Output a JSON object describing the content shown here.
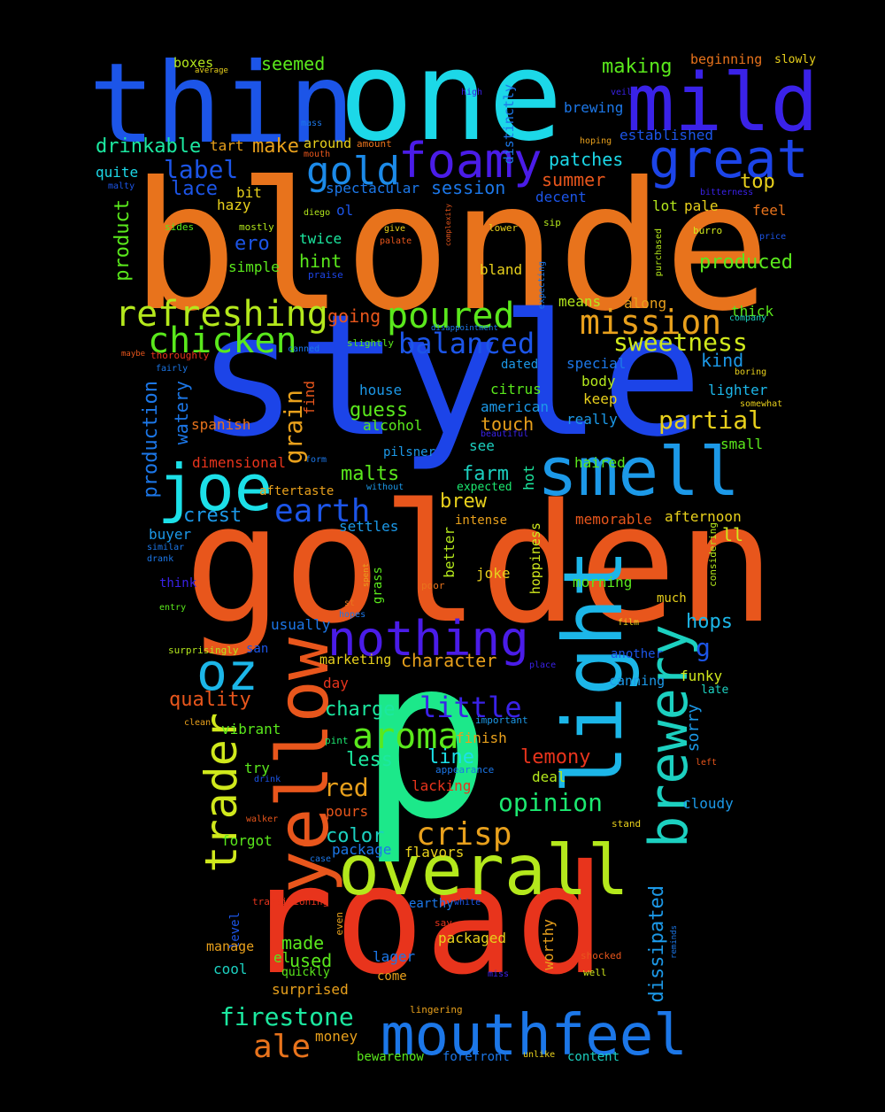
{
  "cloud": {
    "words": [
      {
        "text": "blonde",
        "color": "#e8731c"
      },
      {
        "text": "style",
        "color": "#1c44e8"
      },
      {
        "text": "golden",
        "color": "#e8561c"
      },
      {
        "text": "road",
        "color": "#e8341c"
      },
      {
        "text": "one",
        "color": "#1cd8e8"
      },
      {
        "text": "thin",
        "color": "#1c55e8"
      },
      {
        "text": "mild",
        "color": "#3a22e8"
      },
      {
        "text": "great",
        "color": "#1c44e8"
      },
      {
        "text": "foamy",
        "color": "#4a1ce8"
      },
      {
        "text": "gold",
        "color": "#1c8ae8"
      },
      {
        "text": "light",
        "color": "#1cb6e8"
      },
      {
        "text": "smell",
        "color": "#1c99e8"
      },
      {
        "text": "joe",
        "color": "#1ce0e8"
      },
      {
        "text": "yellow",
        "color": "#e8561c"
      },
      {
        "text": "overall",
        "color": "#b4e81c"
      },
      {
        "text": "brewery",
        "color": "#1cd0c0"
      },
      {
        "text": "mouthfeel",
        "color": "#1c77e8"
      },
      {
        "text": "nothing",
        "color": "#4a1ce8"
      },
      {
        "text": "trader",
        "color": "#d0e81c"
      },
      {
        "text": "oz",
        "color": "#1cb6e8"
      },
      {
        "text": "p",
        "color": "#1ce88a"
      },
      {
        "text": "refreshing",
        "color": "#b4e81c"
      },
      {
        "text": "chicken",
        "color": "#5ae81c"
      },
      {
        "text": "poured",
        "color": "#5ae81c"
      },
      {
        "text": "mission",
        "color": "#e8a01c"
      },
      {
        "text": "balanced",
        "color": "#1c55e8"
      },
      {
        "text": "sweetness",
        "color": "#d0e81c"
      },
      {
        "text": "aroma",
        "color": "#5ae81c"
      },
      {
        "text": "crisp",
        "color": "#e8a01c"
      },
      {
        "text": "earth",
        "color": "#1c55e8"
      },
      {
        "text": "firestone",
        "color": "#1ce8a0"
      },
      {
        "text": "ale",
        "color": "#e8731c"
      },
      {
        "text": "little",
        "color": "#3a22e8"
      },
      {
        "text": "opinion",
        "color": "#1ce870"
      },
      {
        "text": "partial",
        "color": "#e8d01c"
      },
      {
        "text": "label",
        "color": "#1c55e8"
      },
      {
        "text": "lace",
        "color": "#1c55e8"
      },
      {
        "text": "drinkable",
        "color": "#1ce8a0"
      },
      {
        "text": "making",
        "color": "#5ae81c"
      },
      {
        "text": "seemed",
        "color": "#5ae81c"
      },
      {
        "text": "boxes",
        "color": "#b4e81c"
      },
      {
        "text": "beginning",
        "color": "#e8731c"
      },
      {
        "text": "slowly",
        "color": "#e8d01c"
      },
      {
        "text": "brewing",
        "color": "#1c77e8"
      },
      {
        "text": "established",
        "color": "#1c55e8"
      },
      {
        "text": "patches",
        "color": "#1cd8e8"
      },
      {
        "text": "summer",
        "color": "#e8561c"
      },
      {
        "text": "top",
        "color": "#e8d01c"
      },
      {
        "text": "session",
        "color": "#1c77e8"
      },
      {
        "text": "spectacular",
        "color": "#1c77e8"
      },
      {
        "text": "make",
        "color": "#e8a01c"
      },
      {
        "text": "tart",
        "color": "#e8a01c"
      },
      {
        "text": "around",
        "color": "#e8d01c"
      },
      {
        "text": "amount",
        "color": "#e8731c"
      },
      {
        "text": "mouth",
        "color": "#e8561c"
      },
      {
        "text": "quite",
        "color": "#1cd8e8"
      },
      {
        "text": "hazy",
        "color": "#e8d01c"
      },
      {
        "text": "bit",
        "color": "#e8d01c"
      },
      {
        "text": "product",
        "color": "#5ae81c"
      },
      {
        "text": "ero",
        "color": "#1c55e8"
      },
      {
        "text": "twice",
        "color": "#1ce8a0"
      },
      {
        "text": "hint",
        "color": "#5ae81c"
      },
      {
        "text": "simple",
        "color": "#5ae81c"
      },
      {
        "text": "mostly",
        "color": "#b4e81c"
      },
      {
        "text": "sides",
        "color": "#5ae81c"
      },
      {
        "text": "malty",
        "color": "#1c55e8"
      },
      {
        "text": "diego",
        "color": "#b4e81c"
      },
      {
        "text": "ol",
        "color": "#1c55e8"
      },
      {
        "text": "give",
        "color": "#e8d01c"
      },
      {
        "text": "palate",
        "color": "#e8561c"
      },
      {
        "text": "praise",
        "color": "#1c44e8"
      },
      {
        "text": "going",
        "color": "#e8561c"
      },
      {
        "text": "bland",
        "color": "#e8d01c"
      },
      {
        "text": "decent",
        "color": "#1c55e8"
      },
      {
        "text": "pale",
        "color": "#e8d01c"
      },
      {
        "text": "lot",
        "color": "#b4e81c"
      },
      {
        "text": "feel",
        "color": "#e8731c"
      },
      {
        "text": "produced",
        "color": "#5ae81c"
      },
      {
        "text": "thick",
        "color": "#5ae81c"
      },
      {
        "text": "means",
        "color": "#b4e81c"
      },
      {
        "text": "along",
        "color": "#e8a01c"
      },
      {
        "text": "sip",
        "color": "#b4e81c"
      },
      {
        "text": "lower",
        "color": "#e8d01c"
      },
      {
        "text": "burro",
        "color": "#d0e81c"
      },
      {
        "text": "price",
        "color": "#1c55e8"
      },
      {
        "text": "bitterness",
        "color": "#3a22e8"
      },
      {
        "text": "kind",
        "color": "#1c99e8"
      },
      {
        "text": "special",
        "color": "#1c77e8"
      },
      {
        "text": "body",
        "color": "#b4e81c"
      },
      {
        "text": "lighter",
        "color": "#1cb6e8"
      },
      {
        "text": "keep",
        "color": "#e8d01c"
      },
      {
        "text": "somewhat",
        "color": "#e8d01c"
      },
      {
        "text": "boring",
        "color": "#e8d01c"
      },
      {
        "text": "really",
        "color": "#1c99e8"
      },
      {
        "text": "small",
        "color": "#5ae81c"
      },
      {
        "text": "dated",
        "color": "#1c99e8"
      },
      {
        "text": "citrus",
        "color": "#5ae81c"
      },
      {
        "text": "american",
        "color": "#1c99e8"
      },
      {
        "text": "house",
        "color": "#1c99e8"
      },
      {
        "text": "guess",
        "color": "#5ae81c"
      },
      {
        "text": "alcohol",
        "color": "#5ae81c"
      },
      {
        "text": "touch",
        "color": "#e8a01c"
      },
      {
        "text": "beautiful",
        "color": "#3a22e8"
      },
      {
        "text": "see",
        "color": "#1cd0c0"
      },
      {
        "text": "pilsner",
        "color": "#1c99e8"
      },
      {
        "text": "haired",
        "color": "#5ae81c"
      },
      {
        "text": "expected",
        "color": "#1ce870"
      },
      {
        "text": "spanish",
        "color": "#e8731c"
      },
      {
        "text": "dimensional",
        "color": "#e8341c"
      },
      {
        "text": "form",
        "color": "#1c77e8"
      },
      {
        "text": "aftertaste",
        "color": "#e8a01c"
      },
      {
        "text": "without",
        "color": "#1c99e8"
      },
      {
        "text": "malts",
        "color": "#5ae81c"
      },
      {
        "text": "farm",
        "color": "#1cd0c0"
      },
      {
        "text": "brew",
        "color": "#e8d01c"
      },
      {
        "text": "intense",
        "color": "#e8a01c"
      },
      {
        "text": "memorable",
        "color": "#e8561c"
      },
      {
        "text": "afternoon",
        "color": "#e8d01c"
      },
      {
        "text": "crest",
        "color": "#1c99e8"
      },
      {
        "text": "buyer",
        "color": "#1c99e8"
      },
      {
        "text": "settles",
        "color": "#1c99e8"
      },
      {
        "text": "similar",
        "color": "#1c77e8"
      },
      {
        "text": "drank",
        "color": "#1c77e8"
      },
      {
        "text": "think",
        "color": "#3a22e8"
      },
      {
        "text": "entry",
        "color": "#5ae81c"
      },
      {
        "text": "joke",
        "color": "#e8d01c"
      },
      {
        "text": "poor",
        "color": "#e8731c"
      },
      {
        "text": "morning",
        "color": "#5ae81c"
      },
      {
        "text": "much",
        "color": "#e8d01c"
      },
      {
        "text": "st",
        "color": "#e8731c"
      },
      {
        "text": "hopes",
        "color": "#1c77e8"
      },
      {
        "text": "spent",
        "color": "#e8a01c"
      },
      {
        "text": "film",
        "color": "#e8d01c"
      },
      {
        "text": "hops",
        "color": "#1cb6e8"
      },
      {
        "text": "usually",
        "color": "#1c77e8"
      },
      {
        "text": "surprisingly",
        "color": "#b4e81c"
      },
      {
        "text": "san",
        "color": "#1c55e8"
      },
      {
        "text": "character",
        "color": "#e8a01c"
      },
      {
        "text": "marketing",
        "color": "#e8d01c"
      },
      {
        "text": "another",
        "color": "#1c55e8"
      },
      {
        "text": "place",
        "color": "#3a22e8"
      },
      {
        "text": "canning",
        "color": "#1c99e8"
      },
      {
        "text": "funky",
        "color": "#d0e81c"
      },
      {
        "text": "late",
        "color": "#1cd0c0"
      },
      {
        "text": "g",
        "color": "#1c55e8"
      },
      {
        "text": "quality",
        "color": "#e8561c"
      },
      {
        "text": "day",
        "color": "#e8341c"
      },
      {
        "text": "clean",
        "color": "#e8a01c"
      },
      {
        "text": "vibrant",
        "color": "#5ae81c"
      },
      {
        "text": "charge",
        "color": "#1ce8a0"
      },
      {
        "text": "important",
        "color": "#1c99e8"
      },
      {
        "text": "finish",
        "color": "#e8a01c"
      },
      {
        "text": "sorry",
        "color": "#1c99e8"
      },
      {
        "text": "line",
        "color": "#1ce0e8"
      },
      {
        "text": "less",
        "color": "#1ce8a0"
      },
      {
        "text": "lemony",
        "color": "#e8341c"
      },
      {
        "text": "pint",
        "color": "#1ce870"
      },
      {
        "text": "try",
        "color": "#5ae81c"
      },
      {
        "text": "drink",
        "color": "#1c55e8"
      },
      {
        "text": "appearance",
        "color": "#1c77e8"
      },
      {
        "text": "left",
        "color": "#e8561c"
      },
      {
        "text": "red",
        "color": "#e8a01c"
      },
      {
        "text": "lacking",
        "color": "#e8341c"
      },
      {
        "text": "deal",
        "color": "#b4e81c"
      },
      {
        "text": "pours",
        "color": "#e8561c"
      },
      {
        "text": "cloudy",
        "color": "#1c99e8"
      },
      {
        "text": "walker",
        "color": "#e8561c"
      },
      {
        "text": "stand",
        "color": "#e8d01c"
      },
      {
        "text": "forgot",
        "color": "#5ae81c"
      },
      {
        "text": "color",
        "color": "#1cd0c0"
      },
      {
        "text": "package",
        "color": "#1c77e8"
      },
      {
        "text": "case",
        "color": "#1c77e8"
      },
      {
        "text": "flavors",
        "color": "#e8d01c"
      },
      {
        "text": "dissipated",
        "color": "#1c99e8"
      },
      {
        "text": "level",
        "color": "#1c55e8"
      },
      {
        "text": "transitioning",
        "color": "#e8341c"
      },
      {
        "text": "even",
        "color": "#e8a01c"
      },
      {
        "text": "earthy",
        "color": "#1c77e8"
      },
      {
        "text": "white",
        "color": "#1c55e8"
      },
      {
        "text": "worthy",
        "color": "#e8a01c"
      },
      {
        "text": "reminds",
        "color": "#1c77e8"
      },
      {
        "text": "say",
        "color": "#e8341c"
      },
      {
        "text": "made",
        "color": "#5ae81c"
      },
      {
        "text": "manage",
        "color": "#e8a01c"
      },
      {
        "text": "el",
        "color": "#5ae81c"
      },
      {
        "text": "used",
        "color": "#5ae81c"
      },
      {
        "text": "packaged",
        "color": "#e8d01c"
      },
      {
        "text": "lager",
        "color": "#1c77e8"
      },
      {
        "text": "shocked",
        "color": "#e8561c"
      },
      {
        "text": "cool",
        "color": "#1cd0c0"
      },
      {
        "text": "quickly",
        "color": "#5ae81c"
      },
      {
        "text": "come",
        "color": "#e8a01c"
      },
      {
        "text": "miss",
        "color": "#3a22e8"
      },
      {
        "text": "well",
        "color": "#d0e81c"
      },
      {
        "text": "surprised",
        "color": "#e8a01c"
      },
      {
        "text": "lingering",
        "color": "#e8a01c"
      },
      {
        "text": "money",
        "color": "#e8a01c"
      },
      {
        "text": "bewarenow",
        "color": "#5ae81c"
      },
      {
        "text": "forefront",
        "color": "#1c77e8"
      },
      {
        "text": "unlike",
        "color": "#e8d01c"
      },
      {
        "text": "content",
        "color": "#1cd0c0"
      },
      {
        "text": "production",
        "color": "#1c77e8"
      },
      {
        "text": "watery",
        "color": "#1c77e8"
      },
      {
        "text": "grain",
        "color": "#e8a01c"
      },
      {
        "text": "find",
        "color": "#e8561c"
      },
      {
        "text": "better",
        "color": "#b4e81c"
      },
      {
        "text": "hot",
        "color": "#1ce8a0"
      },
      {
        "text": "hoppiness",
        "color": "#d0e81c"
      },
      {
        "text": "grass",
        "color": "#5ae81c"
      },
      {
        "text": "distinctly",
        "color": "#1c77e8"
      },
      {
        "text": "high",
        "color": "#3a22e8"
      },
      {
        "text": "veil",
        "color": "#3a22e8"
      },
      {
        "text": "hoping",
        "color": "#e8a01c"
      },
      {
        "text": "mass",
        "color": "#1c77e8"
      },
      {
        "text": "average",
        "color": "#e8d01c"
      },
      {
        "text": "complexity",
        "color": "#e8561c"
      },
      {
        "text": "purchased",
        "color": "#b4e81c"
      },
      {
        "text": "expecting",
        "color": "#1c77e8"
      },
      {
        "text": "disappointment",
        "color": "#1c77e8"
      },
      {
        "text": "slightly",
        "color": "#5ae81c"
      },
      {
        "text": "company",
        "color": "#1cd0c0"
      },
      {
        "text": "considering",
        "color": "#b4e81c"
      },
      {
        "text": "canned",
        "color": "#1c77e8"
      },
      {
        "text": "maybe",
        "color": "#e8561c"
      },
      {
        "text": "thoroughly",
        "color": "#e8341c"
      },
      {
        "text": "fairly",
        "color": "#1c77e8"
      },
      {
        "text": "ll",
        "color": "#d0e81c"
      }
    ]
  }
}
